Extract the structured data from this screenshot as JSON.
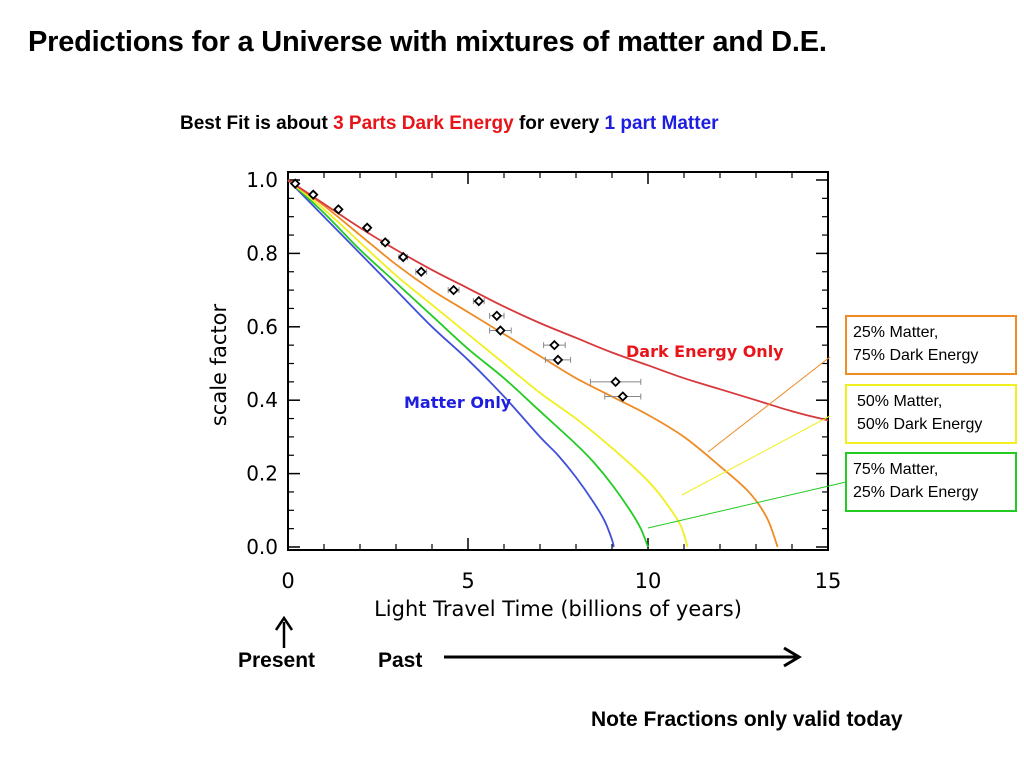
{
  "page": {
    "title": "Predictions for a Universe with mixtures of matter and D.E.",
    "subtitle": {
      "part1": "Best Fit is about ",
      "part2": "3 Parts Dark Energy",
      "part3": " for every ",
      "part4": "1 part Matter"
    },
    "note": "Note Fractions only valid today",
    "present_label": "Present",
    "past_label": "Past"
  },
  "colors": {
    "red": "#e8141a",
    "blue": "#1e1ee0",
    "matter_only": "#4050d8",
    "dark_energy_only": "#d8383c",
    "mix_25_75": "#f08a24",
    "mix_50_50": "#f0f020",
    "mix_75_25": "#22cc22",
    "data_marker": "#000000"
  },
  "boxes": [
    {
      "line1": "25% Matter,",
      "line2": "75% Dark Energy",
      "color": "#f08a24"
    },
    {
      "line1": "50% Matter,",
      "line2": "50% Dark Energy",
      "color": "#f0f020"
    },
    {
      "line1": "75% Matter,",
      "line2": "25% Dark Energy",
      "color": "#22cc22"
    }
  ],
  "chart_data": {
    "type": "line",
    "xlabel": "Light Travel Time (billions of years)",
    "ylabel": "scale factor",
    "xlim": [
      0,
      15
    ],
    "ylim": [
      0,
      1.0
    ],
    "xticks": [
      0,
      5,
      10,
      15
    ],
    "yticks": [
      0.0,
      0.2,
      0.4,
      0.6,
      0.8,
      1.0
    ],
    "ytick_labels": [
      "0.0",
      "0.2",
      "0.4",
      "0.6",
      "0.8",
      "1.0"
    ],
    "annotations": [
      "Dark Energy Only",
      "Matter Only"
    ],
    "series": [
      {
        "name": "Matter Only",
        "color": "#4050d8",
        "x": [
          0,
          1,
          2,
          3,
          4,
          5,
          6,
          7,
          7.5,
          8,
          8.5,
          8.8,
          9.0,
          9.05
        ],
        "y": [
          1.0,
          0.9,
          0.8,
          0.7,
          0.6,
          0.51,
          0.41,
          0.3,
          0.25,
          0.19,
          0.12,
          0.07,
          0.02,
          0.0
        ]
      },
      {
        "color": "#22cc22",
        "x": [
          0,
          1,
          2,
          3,
          4,
          5,
          6,
          7,
          8,
          8.5,
          9,
          9.5,
          9.8,
          10.0
        ],
        "y": [
          1.0,
          0.91,
          0.81,
          0.72,
          0.63,
          0.54,
          0.46,
          0.37,
          0.28,
          0.23,
          0.17,
          0.1,
          0.05,
          0.0
        ]
      },
      {
        "color": "#f0f020",
        "x": [
          0,
          1,
          2,
          3,
          4,
          5,
          6,
          7,
          8,
          9,
          10,
          10.5,
          10.9,
          11.1
        ],
        "y": [
          1.0,
          0.92,
          0.83,
          0.74,
          0.66,
          0.58,
          0.5,
          0.42,
          0.35,
          0.27,
          0.18,
          0.12,
          0.06,
          0.0
        ]
      },
      {
        "color": "#f08a24",
        "x": [
          0,
          1,
          2,
          3,
          4,
          5,
          6,
          7,
          8,
          9,
          10,
          11,
          12,
          12.8,
          13.3,
          13.6
        ],
        "y": [
          1.0,
          0.93,
          0.85,
          0.77,
          0.7,
          0.64,
          0.58,
          0.52,
          0.46,
          0.41,
          0.36,
          0.3,
          0.22,
          0.15,
          0.08,
          0.0
        ]
      },
      {
        "name": "Dark Energy Only",
        "color": "#d8383c",
        "x": [
          0,
          1,
          2,
          3,
          4,
          5,
          6,
          7,
          8,
          9,
          10,
          11,
          12,
          13,
          14,
          15
        ],
        "y": [
          1.0,
          0.935,
          0.87,
          0.81,
          0.755,
          0.705,
          0.655,
          0.61,
          0.57,
          0.53,
          0.495,
          0.46,
          0.43,
          0.4,
          0.37,
          0.345
        ]
      }
    ],
    "data_points": {
      "x": [
        0.2,
        0.7,
        1.4,
        2.2,
        2.7,
        3.2,
        3.7,
        4.6,
        5.3,
        5.8,
        5.9,
        7.4,
        7.5,
        9.1,
        9.3
      ],
      "y": [
        0.99,
        0.96,
        0.92,
        0.87,
        0.83,
        0.79,
        0.75,
        0.7,
        0.67,
        0.63,
        0.59,
        0.55,
        0.51,
        0.45,
        0.41
      ],
      "xerr": [
        0.05,
        0.05,
        0.05,
        0.08,
        0.1,
        0.12,
        0.15,
        0.15,
        0.15,
        0.2,
        0.3,
        0.3,
        0.35,
        0.7,
        0.5
      ]
    }
  }
}
